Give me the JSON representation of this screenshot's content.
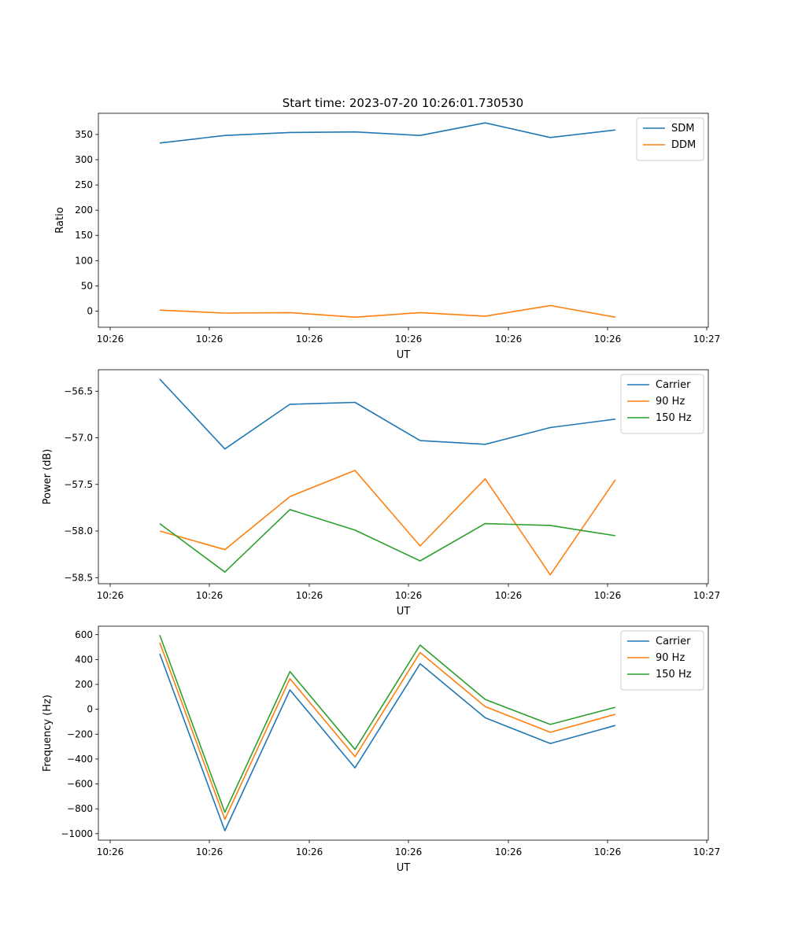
{
  "figure": {
    "title": "Start time: 2023-07-20 10:26:01.730530"
  },
  "chart_data": [
    {
      "type": "line",
      "xlabel": "UT",
      "ylabel": "Ratio",
      "x_ticks": [
        "10:26",
        "10:26",
        "10:26",
        "10:26",
        "10:26",
        "10:26",
        "10:27"
      ],
      "x": [
        0,
        1,
        2,
        3,
        4,
        5,
        6,
        7
      ],
      "ylim": [
        -32,
        392
      ],
      "yticks": [
        0,
        50,
        100,
        150,
        200,
        250,
        300,
        350
      ],
      "legend": "top-right",
      "series": [
        {
          "name": "SDM",
          "color": "#1f77b4",
          "values": [
            333,
            348,
            354,
            355,
            348,
            373,
            344,
            359
          ]
        },
        {
          "name": "DDM",
          "color": "#ff7f0e",
          "values": [
            2,
            -4,
            -3,
            -12,
            -3,
            -10,
            11,
            -12
          ]
        }
      ]
    },
    {
      "type": "line",
      "xlabel": "UT",
      "ylabel": "Power (dB)",
      "x_ticks": [
        "10:26",
        "10:26",
        "10:26",
        "10:26",
        "10:26",
        "10:26",
        "10:27"
      ],
      "x": [
        0,
        1,
        2,
        3,
        4,
        5,
        6,
        7
      ],
      "ylim": [
        -58.565,
        -56.27
      ],
      "yticks": [
        -56.5,
        -57.0,
        -57.5,
        -58.0,
        -58.5
      ],
      "ytick_labels": [
        "−56.5",
        "−57.0",
        "−57.5",
        "−58.0",
        "−58.5"
      ],
      "legend": "top-right",
      "series": [
        {
          "name": "Carrier",
          "color": "#1f77b4",
          "values": [
            -56.37,
            -57.12,
            -56.64,
            -56.62,
            -57.03,
            -57.07,
            -56.89,
            -56.8
          ]
        },
        {
          "name": "90 Hz",
          "color": "#ff7f0e",
          "values": [
            -58.0,
            -58.2,
            -57.63,
            -57.35,
            -58.16,
            -57.44,
            -58.47,
            -57.45
          ]
        },
        {
          "name": "150 Hz",
          "color": "#2ca02c",
          "values": [
            -57.92,
            -58.44,
            -57.77,
            -57.99,
            -58.32,
            -57.92,
            -57.94,
            -58.05
          ]
        }
      ]
    },
    {
      "type": "line",
      "xlabel": "UT",
      "ylabel": "Frequency (Hz)",
      "x_ticks": [
        "10:26",
        "10:26",
        "10:26",
        "10:26",
        "10:26",
        "10:26",
        "10:27"
      ],
      "x": [
        0,
        1,
        2,
        3,
        4,
        5,
        6,
        7
      ],
      "ylim": [
        -1052,
        668
      ],
      "yticks": [
        600,
        400,
        200,
        0,
        -200,
        -400,
        -600,
        -800,
        -1000
      ],
      "ytick_labels": [
        "600",
        "400",
        "200",
        "0",
        "−200",
        "−400",
        "−600",
        "−800",
        "−1000"
      ],
      "legend": "top-right",
      "series": [
        {
          "name": "Carrier",
          "color": "#1f77b4",
          "values": [
            446,
            -976,
            156,
            -471,
            366,
            -68,
            -275,
            -130
          ]
        },
        {
          "name": "90 Hz",
          "color": "#ff7f0e",
          "values": [
            536,
            -885,
            246,
            -381,
            456,
            22,
            -185,
            -40
          ]
        },
        {
          "name": "150 Hz",
          "color": "#2ca02c",
          "values": [
            596,
            -828,
            303,
            -323,
            516,
            79,
            -122,
            16
          ]
        }
      ]
    }
  ]
}
